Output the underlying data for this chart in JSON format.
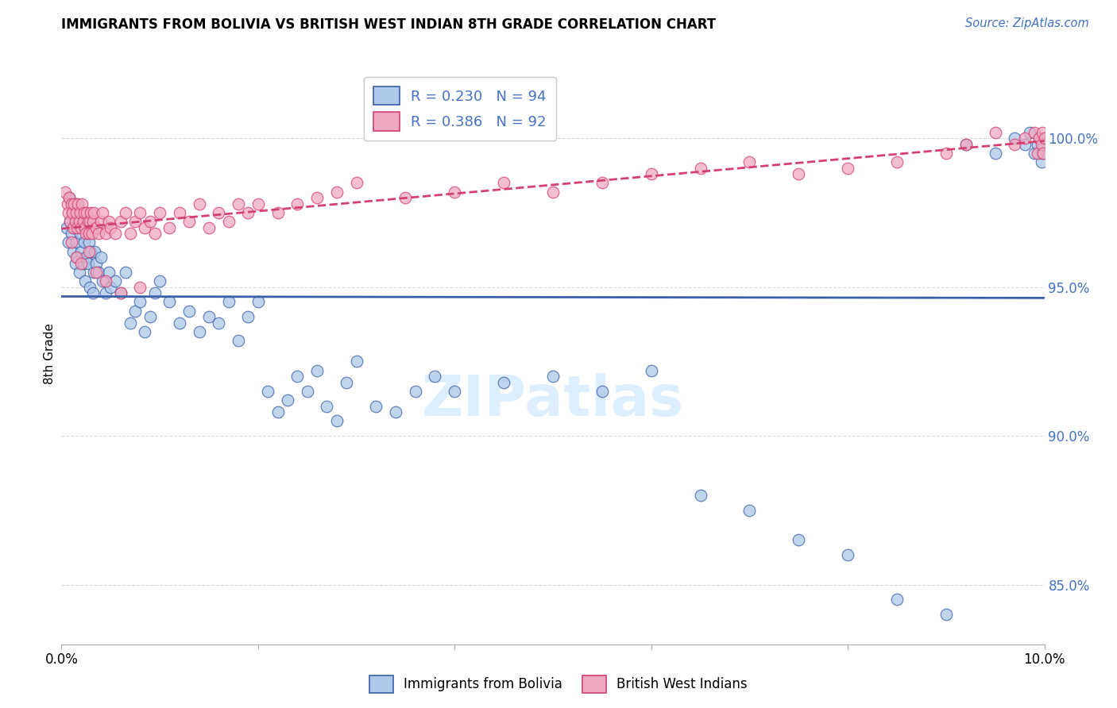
{
  "title": "IMMIGRANTS FROM BOLIVIA VS BRITISH WEST INDIAN 8TH GRADE CORRELATION CHART",
  "source": "Source: ZipAtlas.com",
  "ylabel": "8th Grade",
  "yticks": [
    85.0,
    90.0,
    95.0,
    100.0
  ],
  "ytick_labels": [
    "85.0%",
    "90.0%",
    "95.0%",
    "100.0%"
  ],
  "xlim": [
    0.0,
    10.0
  ],
  "ylim": [
    83.0,
    102.5
  ],
  "bolivia_R": 0.23,
  "bolivia_N": 94,
  "bwi_R": 0.386,
  "bwi_N": 92,
  "bolivia_color": "#adc8e8",
  "bwi_color": "#f0a8c0",
  "trend_bolivia_color": "#3a5faa",
  "trend_bwi_color": "#d44070",
  "legend_bolivia": "Immigrants from Bolivia",
  "legend_bwi": "British West Indians",
  "watermark_color": "#ddeeff",
  "grid_color": "#d8d8d8",
  "bolivia_x": [
    0.05,
    0.07,
    0.08,
    0.09,
    0.1,
    0.11,
    0.12,
    0.13,
    0.14,
    0.15,
    0.15,
    0.16,
    0.17,
    0.18,
    0.19,
    0.2,
    0.21,
    0.22,
    0.23,
    0.24,
    0.25,
    0.26,
    0.27,
    0.28,
    0.29,
    0.3,
    0.31,
    0.32,
    0.33,
    0.34,
    0.35,
    0.38,
    0.4,
    0.42,
    0.45,
    0.48,
    0.5,
    0.55,
    0.6,
    0.65,
    0.7,
    0.75,
    0.8,
    0.85,
    0.9,
    0.95,
    1.0,
    1.1,
    1.2,
    1.3,
    1.4,
    1.5,
    1.6,
    1.7,
    1.8,
    1.9,
    2.0,
    2.1,
    2.2,
    2.3,
    2.4,
    2.5,
    2.6,
    2.7,
    2.8,
    2.9,
    3.0,
    3.2,
    3.4,
    3.6,
    3.8,
    4.0,
    4.5,
    5.0,
    5.5,
    6.0,
    6.5,
    7.0,
    7.5,
    8.0,
    8.5,
    9.0,
    9.2,
    9.5,
    9.7,
    9.8,
    9.85,
    9.9,
    9.93,
    9.95,
    9.97,
    9.98,
    9.99,
    10.0
  ],
  "bolivia_y": [
    97.0,
    96.5,
    98.0,
    97.2,
    96.8,
    97.5,
    96.2,
    97.0,
    95.8,
    96.5,
    97.8,
    96.0,
    97.2,
    95.5,
    96.8,
    96.2,
    97.0,
    95.8,
    96.5,
    95.2,
    96.0,
    97.2,
    95.8,
    96.5,
    95.0,
    96.2,
    97.0,
    94.8,
    95.5,
    96.2,
    95.8,
    95.5,
    96.0,
    95.2,
    94.8,
    95.5,
    95.0,
    95.2,
    94.8,
    95.5,
    93.8,
    94.2,
    94.5,
    93.5,
    94.0,
    94.8,
    95.2,
    94.5,
    93.8,
    94.2,
    93.5,
    94.0,
    93.8,
    94.5,
    93.2,
    94.0,
    94.5,
    91.5,
    90.8,
    91.2,
    92.0,
    91.5,
    92.2,
    91.0,
    90.5,
    91.8,
    92.5,
    91.0,
    90.8,
    91.5,
    92.0,
    91.5,
    91.8,
    92.0,
    91.5,
    92.2,
    88.0,
    87.5,
    86.5,
    86.0,
    84.5,
    84.0,
    99.8,
    99.5,
    100.0,
    99.8,
    100.2,
    99.5,
    99.8,
    100.0,
    99.2,
    99.5,
    99.8,
    100.0
  ],
  "bwi_x": [
    0.04,
    0.06,
    0.07,
    0.08,
    0.09,
    0.1,
    0.11,
    0.12,
    0.13,
    0.14,
    0.15,
    0.16,
    0.17,
    0.18,
    0.19,
    0.2,
    0.21,
    0.22,
    0.23,
    0.24,
    0.25,
    0.26,
    0.27,
    0.28,
    0.29,
    0.3,
    0.31,
    0.32,
    0.33,
    0.35,
    0.38,
    0.4,
    0.42,
    0.45,
    0.48,
    0.5,
    0.55,
    0.6,
    0.65,
    0.7,
    0.75,
    0.8,
    0.85,
    0.9,
    0.95,
    1.0,
    1.1,
    1.2,
    1.3,
    1.4,
    1.5,
    1.6,
    1.7,
    1.8,
    1.9,
    2.0,
    2.2,
    2.4,
    2.6,
    2.8,
    3.0,
    3.5,
    4.0,
    4.5,
    5.0,
    5.5,
    6.0,
    6.5,
    7.0,
    7.5,
    8.0,
    8.5,
    9.0,
    9.2,
    9.5,
    9.7,
    9.8,
    9.9,
    9.93,
    9.95,
    9.97,
    9.98,
    9.99,
    10.0,
    0.1,
    0.15,
    0.2,
    0.28,
    0.35,
    0.45,
    0.6,
    0.8
  ],
  "bwi_y": [
    98.2,
    97.8,
    97.5,
    98.0,
    97.2,
    97.8,
    97.5,
    97.0,
    97.8,
    97.2,
    97.5,
    97.0,
    97.8,
    97.2,
    97.5,
    97.0,
    97.8,
    97.2,
    97.5,
    97.0,
    96.8,
    97.5,
    97.2,
    96.8,
    97.2,
    97.5,
    96.8,
    97.2,
    97.5,
    97.0,
    96.8,
    97.2,
    97.5,
    96.8,
    97.2,
    97.0,
    96.8,
    97.2,
    97.5,
    96.8,
    97.2,
    97.5,
    97.0,
    97.2,
    96.8,
    97.5,
    97.0,
    97.5,
    97.2,
    97.8,
    97.0,
    97.5,
    97.2,
    97.8,
    97.5,
    97.8,
    97.5,
    97.8,
    98.0,
    98.2,
    98.5,
    98.0,
    98.2,
    98.5,
    98.2,
    98.5,
    98.8,
    99.0,
    99.2,
    98.8,
    99.0,
    99.2,
    99.5,
    99.8,
    100.2,
    99.8,
    100.0,
    100.2,
    99.5,
    100.0,
    99.8,
    100.2,
    99.5,
    100.0,
    96.5,
    96.0,
    95.8,
    96.2,
    95.5,
    95.2,
    94.8,
    95.0
  ]
}
